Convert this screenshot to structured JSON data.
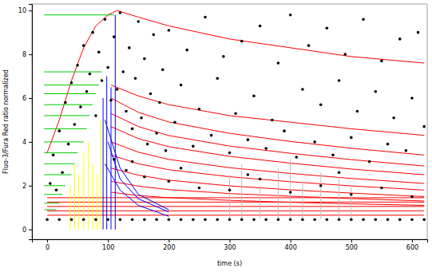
{
  "chart_data": {
    "type": "scatter",
    "xlabel": "time (s)",
    "ylabel": "Fluo-3/Fura Red ratio normalized",
    "xlim": [
      -25,
      625
    ],
    "xticks": [
      0,
      100,
      200,
      300,
      400,
      500,
      600
    ],
    "ylim": [
      -0.45,
      10.3
    ],
    "yticks": [
      0,
      2,
      4,
      6,
      8,
      10
    ],
    "series": [
      {
        "type": "line",
        "color": "#ff0000",
        "x": [
          0,
          20,
          40,
          60,
          80,
          100,
          115,
          150,
          200,
          300,
          400,
          500,
          620
        ],
        "values": [
          3.5,
          5,
          6.8,
          8.3,
          9.3,
          9.8,
          10,
          9.7,
          9.3,
          8.7,
          8.3,
          7.9,
          7.6
        ]
      },
      {
        "type": "line",
        "color": "#ff0000",
        "x": [
          105,
          150,
          200,
          300,
          400,
          500,
          620
        ],
        "values": [
          6.6,
          6.1,
          5.7,
          5.2,
          4.9,
          4.6,
          4.3
        ]
      },
      {
        "type": "line",
        "color": "#ff0000",
        "x": [
          105,
          150,
          200,
          300,
          400,
          500,
          620
        ],
        "values": [
          6.0,
          5.35,
          4.91,
          4.39,
          4.02,
          3.71,
          3.4
        ]
      },
      {
        "type": "line",
        "color": "#ff0000",
        "x": [
          105,
          150,
          200,
          300,
          400,
          500,
          620
        ],
        "values": [
          5.3,
          4.7,
          4.29,
          3.81,
          3.48,
          3.19,
          2.9
        ]
      },
      {
        "type": "line",
        "color": "#ff0000",
        "x": [
          105,
          150,
          200,
          300,
          400,
          500,
          620
        ],
        "values": [
          4.7,
          4.15,
          3.78,
          3.34,
          3.03,
          2.76,
          2.5
        ]
      },
      {
        "type": "line",
        "color": "#ff0000",
        "x": [
          105,
          150,
          200,
          300,
          400,
          500,
          620
        ],
        "values": [
          4.0,
          3.53,
          3.2,
          2.82,
          2.56,
          2.33,
          2.1
        ]
      },
      {
        "type": "line",
        "color": "#ff0000",
        "x": [
          105,
          150,
          200,
          300,
          400,
          500,
          620
        ],
        "values": [
          3.4,
          3.0,
          2.73,
          2.41,
          2.18,
          1.99,
          1.8
        ]
      },
      {
        "type": "line",
        "color": "#ff0000",
        "x": [
          105,
          150,
          200,
          300,
          400,
          500,
          620
        ],
        "values": [
          2.8,
          2.48,
          2.25,
          1.99,
          1.81,
          1.66,
          1.5
        ]
      },
      {
        "type": "line",
        "color": "#ff0000",
        "x": [
          105,
          150,
          200,
          300,
          400,
          500,
          620
        ],
        "values": [
          2.2,
          1.98,
          1.82,
          1.64,
          1.52,
          1.41,
          1.3
        ]
      },
      {
        "type": "line",
        "color": "#ff0000",
        "x": [
          105,
          150,
          200,
          300,
          400,
          500,
          620
        ],
        "values": [
          1.7,
          1.55,
          1.45,
          1.33,
          1.24,
          1.17,
          1.1
        ]
      },
      {
        "type": "line",
        "color": "#ff0000",
        "x": [
          0,
          620
        ],
        "values": [
          1.45,
          1.45
        ]
      },
      {
        "type": "line",
        "color": "#ff0000",
        "x": [
          0,
          620
        ],
        "values": [
          1.25,
          1.25
        ]
      },
      {
        "type": "line",
        "color": "#ff0000",
        "x": [
          0,
          620
        ],
        "values": [
          1.05,
          1.05
        ]
      },
      {
        "type": "line",
        "color": "#ff0000",
        "x": [
          0,
          620
        ],
        "values": [
          0.85,
          0.85
        ]
      },
      {
        "type": "line",
        "color": "#ff0000",
        "x": [
          0,
          620
        ],
        "values": [
          0.65,
          0.65
        ]
      },
      {
        "type": "line",
        "color": "#00cc00",
        "x": [
          -5,
          110
        ],
        "values": [
          9.8,
          9.8
        ]
      },
      {
        "type": "line",
        "color": "#00cc00",
        "x": [
          -5,
          90
        ],
        "values": [
          7.2,
          7.2
        ]
      },
      {
        "type": "line",
        "color": "#00cc00",
        "x": [
          -5,
          85
        ],
        "values": [
          6.6,
          6.6
        ]
      },
      {
        "type": "line",
        "color": "#00cc00",
        "x": [
          -5,
          80
        ],
        "values": [
          6.2,
          6.2
        ]
      },
      {
        "type": "line",
        "color": "#00cc00",
        "x": [
          -5,
          75
        ],
        "values": [
          5.7,
          5.7
        ]
      },
      {
        "type": "line",
        "color": "#00cc00",
        "x": [
          -5,
          70
        ],
        "values": [
          5.2,
          5.2
        ]
      },
      {
        "type": "line",
        "color": "#00cc00",
        "x": [
          -5,
          65
        ],
        "values": [
          4.6,
          4.6
        ]
      },
      {
        "type": "line",
        "color": "#00cc00",
        "x": [
          -5,
          60
        ],
        "values": [
          4.0,
          4.0
        ]
      },
      {
        "type": "line",
        "color": "#00cc00",
        "x": [
          -5,
          50
        ],
        "values": [
          3.5,
          3.5
        ]
      },
      {
        "type": "line",
        "color": "#00cc00",
        "x": [
          -5,
          45
        ],
        "values": [
          3.0,
          3.0
        ]
      },
      {
        "type": "line",
        "color": "#00cc00",
        "x": [
          -5,
          40
        ],
        "values": [
          2.5,
          2.5
        ]
      },
      {
        "type": "line",
        "color": "#00cc00",
        "x": [
          -5,
          30
        ],
        "values": [
          2.0,
          2.0
        ]
      },
      {
        "type": "line",
        "color": "#00cc00",
        "x": [
          -5,
          25
        ],
        "values": [
          1.6,
          1.6
        ]
      },
      {
        "type": "line",
        "color": "#00cc00",
        "x": [
          -5,
          20
        ],
        "values": [
          1.2,
          1.2
        ]
      },
      {
        "type": "line",
        "color": "#00cc00",
        "x": [
          -5,
          15
        ],
        "values": [
          0.9,
          0.9
        ]
      },
      {
        "type": "line",
        "color": "#ffff00",
        "x": [
          38,
          38
        ],
        "values": [
          0,
          2
        ]
      },
      {
        "type": "line",
        "color": "#ffff00",
        "x": [
          45,
          45
        ],
        "values": [
          0,
          3
        ]
      },
      {
        "type": "line",
        "color": "#ffff00",
        "x": [
          52,
          52
        ],
        "values": [
          0,
          2.5
        ]
      },
      {
        "type": "line",
        "color": "#ffff00",
        "x": [
          60,
          60
        ],
        "values": [
          0,
          3.5
        ]
      },
      {
        "type": "line",
        "color": "#ffff00",
        "x": [
          68,
          68
        ],
        "values": [
          0,
          4
        ]
      },
      {
        "type": "line",
        "color": "#ffff00",
        "x": [
          75,
          75
        ],
        "values": [
          0,
          3
        ]
      },
      {
        "type": "line",
        "color": "#ffff00",
        "x": [
          82,
          82
        ],
        "values": [
          0,
          2.5
        ]
      },
      {
        "type": "line",
        "color": "#ffff00",
        "x": [
          88,
          88
        ],
        "values": [
          0,
          5
        ]
      },
      {
        "type": "line",
        "color": "#0000ff",
        "x": [
          92,
          92
        ],
        "values": [
          0,
          6
        ]
      },
      {
        "type": "line",
        "color": "#0000ff",
        "x": [
          98,
          98
        ],
        "values": [
          0,
          7
        ]
      },
      {
        "type": "line",
        "color": "#0000ff",
        "x": [
          105,
          105
        ],
        "values": [
          0,
          6.5
        ]
      },
      {
        "type": "line",
        "color": "#0000ff",
        "x": [
          112,
          112
        ],
        "values": [
          0,
          9.8
        ]
      },
      {
        "type": "line",
        "color": "#0000ff",
        "x": [
          95,
          120,
          150,
          200
        ],
        "values": [
          5,
          2.8,
          1.6,
          0.9
        ]
      },
      {
        "type": "line",
        "color": "#0000ff",
        "x": [
          100,
          120,
          150,
          200
        ],
        "values": [
          4,
          2.3,
          1.4,
          0.8
        ]
      },
      {
        "type": "line",
        "color": "#0000ff",
        "x": [
          95,
          120,
          150,
          200
        ],
        "values": [
          3,
          1.8,
          1.1,
          0.6
        ]
      },
      {
        "type": "line",
        "color": "#bebebe",
        "x": [
          300,
          300
        ],
        "values": [
          0.5,
          2.5
        ]
      },
      {
        "type": "line",
        "color": "#bebebe",
        "x": [
          320,
          320
        ],
        "values": [
          0.5,
          3
        ]
      },
      {
        "type": "line",
        "color": "#bebebe",
        "x": [
          350,
          350
        ],
        "values": [
          0.5,
          2
        ]
      },
      {
        "type": "line",
        "color": "#bebebe",
        "x": [
          380,
          380
        ],
        "values": [
          0.5,
          2.8
        ]
      },
      {
        "type": "line",
        "color": "#bebebe",
        "x": [
          400,
          400
        ],
        "values": [
          0.5,
          3.2
        ]
      },
      {
        "type": "line",
        "color": "#bebebe",
        "x": [
          420,
          420
        ],
        "values": [
          0.5,
          2.2
        ]
      },
      {
        "type": "line",
        "color": "#bebebe",
        "x": [
          450,
          450
        ],
        "values": [
          0.5,
          2.6
        ]
      },
      {
        "type": "line",
        "color": "#bebebe",
        "x": [
          480,
          480
        ],
        "values": [
          0.5,
          2.4
        ]
      },
      {
        "type": "line",
        "color": "#bebebe",
        "x": [
          500,
          500
        ],
        "values": [
          0.5,
          2
        ]
      },
      {
        "type": "scatter",
        "color": "#000000",
        "marker": "circle",
        "x": [
          5,
          10,
          15,
          20,
          25,
          30,
          35,
          40,
          45,
          50,
          55,
          60,
          65,
          70,
          75,
          80,
          85,
          90,
          95,
          100,
          105,
          110,
          115,
          120,
          125,
          130,
          135,
          140,
          145,
          150,
          155,
          160,
          165,
          170,
          175,
          180,
          185,
          190,
          195,
          200,
          210,
          220,
          230,
          240,
          250,
          260,
          270,
          280,
          290,
          300,
          310,
          320,
          330,
          340,
          350,
          360,
          370,
          380,
          390,
          400,
          410,
          420,
          430,
          440,
          450,
          460,
          470,
          480,
          490,
          500,
          510,
          520,
          530,
          540,
          550,
          560,
          570,
          580,
          590,
          600,
          610,
          620,
          110,
          130,
          160,
          200,
          250,
          300,
          350,
          400,
          450,
          500,
          550,
          600,
          140,
          220,
          330,
          480
        ],
        "values": [
          2.1,
          3.4,
          1.8,
          4.5,
          2.6,
          5.8,
          3.9,
          6.7,
          4.8,
          7.5,
          5.6,
          8.4,
          6.3,
          7.1,
          9.0,
          5.2,
          8.1,
          6.8,
          9.6,
          7.4,
          5.9,
          8.8,
          6.4,
          9.9,
          7.2,
          5.4,
          8.3,
          4.6,
          6.9,
          9.5,
          5.1,
          7.8,
          3.9,
          6.2,
          8.9,
          4.4,
          5.8,
          7.3,
          3.6,
          9.1,
          4.9,
          6.6,
          8.2,
          3.8,
          5.5,
          9.7,
          4.3,
          6.9,
          7.9,
          3.5,
          5.3,
          8.6,
          4.1,
          6.1,
          9.3,
          3.7,
          5.0,
          7.6,
          4.5,
          9.8,
          3.3,
          6.4,
          8.4,
          4.0,
          5.7,
          9.2,
          3.4,
          6.8,
          8.0,
          4.2,
          5.4,
          9.6,
          3.1,
          6.3,
          7.7,
          3.9,
          5.1,
          8.7,
          3.6,
          6.0,
          9.0,
          4.7,
          3.2,
          2.7,
          2.4,
          2.2,
          1.9,
          1.8,
          2.3,
          1.7,
          2.0,
          1.6,
          1.9,
          1.5,
          3.1,
          2.8,
          2.5,
          2.6
        ]
      },
      {
        "type": "scatter",
        "color": "#000000",
        "marker": "circle",
        "x": [
          0,
          20,
          40,
          60,
          80,
          100,
          120,
          140,
          160,
          180,
          200,
          220,
          240,
          260,
          280,
          300,
          320,
          340,
          360,
          380,
          400,
          420,
          440,
          460,
          480,
          500,
          520,
          540,
          560,
          580,
          600,
          620
        ],
        "values": [
          0.45,
          0.45,
          0.45,
          0.45,
          0.45,
          0.45,
          0.45,
          0.45,
          0.45,
          0.45,
          0.45,
          0.45,
          0.45,
          0.45,
          0.45,
          0.45,
          0.45,
          0.45,
          0.45,
          0.45,
          0.45,
          0.45,
          0.45,
          0.45,
          0.45,
          0.45,
          0.45,
          0.45,
          0.45,
          0.45,
          0.45,
          0.45
        ]
      }
    ]
  }
}
